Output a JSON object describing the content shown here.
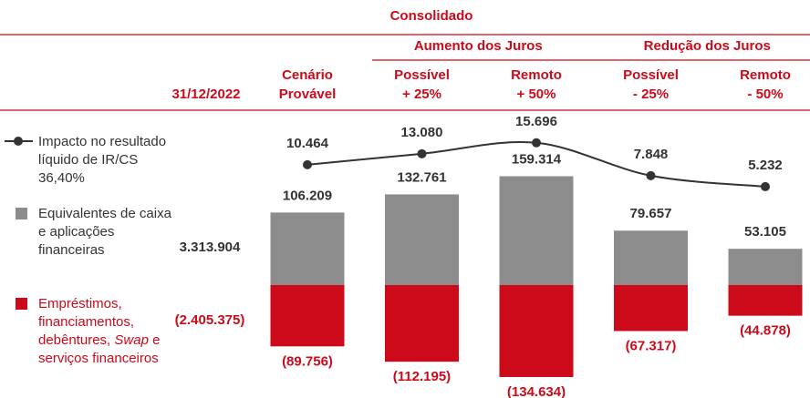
{
  "chart_data": {
    "type": "combo",
    "title": "Consolidado",
    "groups": [
      "Aumento dos Juros",
      "Redução dos Juros"
    ],
    "base_label": "31/12/2022",
    "categories": [
      [
        "Cenário",
        "Provável"
      ],
      [
        "Possível",
        "+ 25%"
      ],
      [
        "Remoto",
        "+ 50%"
      ],
      [
        "Possível",
        "- 25%"
      ],
      [
        "Remoto",
        "- 50%"
      ]
    ],
    "series": [
      {
        "name": "Impacto no resultado líquido de IR/CS 36,40%",
        "type": "line",
        "color": "#333333",
        "values": [
          10464,
          13080,
          15696,
          7848,
          5232
        ],
        "value_labels": [
          "10.464",
          "13.080",
          "15.696",
          "7.848",
          "5.232"
        ]
      },
      {
        "name": "Equivalentes de caixa e aplicações financeiras",
        "type": "bar",
        "color": "#8c8c8c",
        "values": [
          106209,
          132761,
          159314,
          79657,
          53105
        ],
        "value_labels": [
          "106.209",
          "132.761",
          "159.314",
          "79.657",
          "53.105"
        ],
        "base_value": 3313904,
        "base_value_label": "3.313.904"
      },
      {
        "name_parts": [
          "Empréstimos, financiamentos, debêntures,",
          "Swap",
          "e serviços financeiros"
        ],
        "type": "bar",
        "color": "#cc0a1a",
        "values": [
          -89756,
          -112195,
          -134634,
          -67317,
          -44878
        ],
        "value_labels": [
          "(89.756)",
          "(112.195)",
          "(134.634)",
          "(67.317)",
          "(44.878)"
        ],
        "base_value": -2405375,
        "base_value_label": "(2.405.375)"
      }
    ]
  }
}
